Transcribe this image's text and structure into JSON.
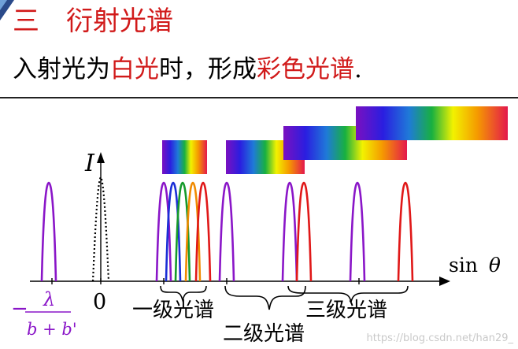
{
  "header": {
    "section_number": "三",
    "section_title": "衍射光谱"
  },
  "statement": {
    "part1": "入射光为",
    "highlight1": "白光",
    "part2": "时，形成",
    "highlight2": "彩色光谱",
    "end": "."
  },
  "figure": {
    "intensity_label": "I",
    "axis_label_sin": "sin",
    "axis_label_theta": "θ",
    "zero_label": "0",
    "neg_first_order_numerator": "λ",
    "neg_first_order_denominator": "b + b'",
    "neg_sign": "−",
    "first_order_label": "一级光谱",
    "second_order_label": "二级光谱",
    "third_order_label": "三级光谱",
    "colors": {
      "violet": "#8a16c8",
      "blue": "#1a2fd6",
      "green": "#159a2a",
      "orange": "#f08a00",
      "red": "#e01818"
    }
  },
  "watermark": "https://blog.csdn.net/han29_"
}
